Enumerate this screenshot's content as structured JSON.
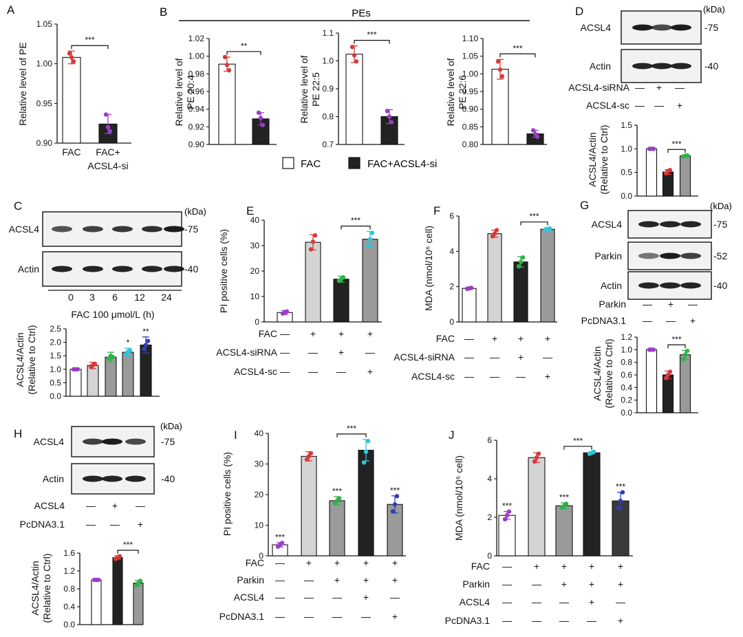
{
  "figure": {
    "legend": {
      "fac": "FAC",
      "fac_si": "FAC+ACSL4-si"
    },
    "pes_title": "PEs",
    "kda": "(kDa)",
    "colors": {
      "white": "#ffffff",
      "black": "#222222",
      "dark": "#3a3a3a",
      "light": "#d4d4d4",
      "mid": "#9a9a9a",
      "red": "#d93a3a",
      "purple": "#9a3dc8",
      "green": "#2eb34a",
      "cyan": "#2fc6dc",
      "blue": "#2f3fb0"
    }
  },
  "chart_data": [
    {
      "id": "A",
      "type": "bar",
      "panel_label": "A",
      "ylabel": "Relative level of PE",
      "ylim": [
        0.9,
        1.05
      ],
      "yticks": [
        "0.90",
        "0.95",
        "1.00",
        "1.05"
      ],
      "categories": [
        "FAC",
        "FAC+ ACSL4-si"
      ],
      "values": [
        1.008,
        0.924
      ],
      "errors": [
        0.008,
        0.012
      ],
      "fills": [
        "white",
        "black"
      ],
      "dots": [
        "red",
        "purple"
      ],
      "dot_values": [
        [
          1.013,
          1.008,
          1.003
        ],
        [
          0.936,
          0.92,
          0.915
        ]
      ],
      "sig": [
        {
          "from": 0,
          "to": 1,
          "label": "***"
        }
      ],
      "cat_lines": [
        [
          "FAC"
        ],
        [
          "FAC+",
          "ACSL4-si"
        ]
      ]
    },
    {
      "id": "B1",
      "type": "bar",
      "panel_label": "B",
      "ylabel": "Relative level of PE 20:4",
      "ylim": [
        0.9,
        1.02
      ],
      "yticks": [
        "0.90",
        "0.92",
        "0.94",
        "0.96",
        "0.98",
        "1.00",
        "1.02"
      ],
      "categories": [
        "FAC",
        "FAC+ACSL4-si"
      ],
      "values": [
        0.991,
        0.929
      ],
      "errors": [
        0.008,
        0.007
      ],
      "fills": [
        "white",
        "black"
      ],
      "dots": [
        "red",
        "purple"
      ],
      "dot_values": [
        [
          0.999,
          0.99,
          0.984
        ],
        [
          0.936,
          0.93,
          0.922
        ]
      ],
      "sig": [
        {
          "from": 0,
          "to": 1,
          "label": "**"
        }
      ]
    },
    {
      "id": "B2",
      "type": "bar",
      "ylabel": "Relative level of PE 22:5",
      "ylim": [
        0.7,
        1.1
      ],
      "yticks": [
        "0.7",
        "0.8",
        "0.9",
        "1.0",
        "1.1"
      ],
      "categories": [
        "FAC",
        "FAC+ACSL4-si"
      ],
      "values": [
        1.024,
        0.8
      ],
      "errors": [
        0.03,
        0.025
      ],
      "fills": [
        "white",
        "black"
      ],
      "dots": [
        "red",
        "purple"
      ],
      "dot_values": [
        [
          1.05,
          1.02,
          0.998
        ],
        [
          0.82,
          0.8,
          0.78
        ]
      ],
      "sig": [
        {
          "from": 0,
          "to": 1,
          "label": "***"
        }
      ]
    },
    {
      "id": "B3",
      "type": "bar",
      "ylabel": "Relative level of PE 22:6",
      "ylim": [
        0.8,
        1.1
      ],
      "yticks": [
        "0.80",
        "0.85",
        "0.90",
        "0.95",
        "1.00",
        "1.05",
        "1.10"
      ],
      "categories": [
        "FAC",
        "FAC+ACSL4-si"
      ],
      "values": [
        1.013,
        0.83
      ],
      "errors": [
        0.028,
        0.01
      ],
      "fills": [
        "white",
        "black"
      ],
      "dots": [
        "red",
        "purple"
      ],
      "dot_values": [
        [
          1.035,
          1.012,
          0.993
        ],
        [
          0.84,
          0.83,
          0.822
        ]
      ],
      "sig": [
        {
          "from": 0,
          "to": 1,
          "label": "***"
        }
      ]
    },
    {
      "id": "C",
      "type": "bar",
      "ylabel": "ACSL4/Actin (Relative to Ctrl)",
      "ylim": [
        0,
        2.5
      ],
      "yticks": [
        "0.0",
        "0.5",
        "1.0",
        "1.5",
        "2.0",
        "2.5"
      ],
      "categories": [
        "0",
        "3",
        "6",
        "12",
        "24"
      ],
      "values": [
        1.0,
        1.14,
        1.45,
        1.63,
        1.9
      ],
      "errors": [
        0.02,
        0.12,
        0.18,
        0.15,
        0.3
      ],
      "fills": [
        "white",
        "light",
        "mid",
        "mid",
        "black"
      ],
      "dots": [
        "purple",
        "red",
        "green",
        "cyan",
        "blue"
      ],
      "dot_values": [
        [
          1.0,
          1.0,
          1.0
        ],
        [
          1.1,
          1.15,
          1.2
        ],
        [
          1.4,
          1.5,
          1.45
        ],
        [
          1.55,
          1.65,
          1.7
        ],
        [
          1.75,
          1.9,
          2.05
        ]
      ],
      "stars": [
        "",
        "",
        "",
        "*",
        "**"
      ]
    },
    {
      "id": "D",
      "type": "bar",
      "ylabel": "ACSL4/Actin (Relative to Ctrl)",
      "ylim": [
        0,
        1.5
      ],
      "yticks": [
        "0.0",
        "0.5",
        "1.0",
        "1.5"
      ],
      "categories": [
        "",
        "",
        ""
      ],
      "values": [
        1.0,
        0.51,
        0.85
      ],
      "errors": [
        0.02,
        0.05,
        0.02
      ],
      "fills": [
        "white",
        "black",
        "mid"
      ],
      "dots": [
        "purple",
        "red",
        "green"
      ],
      "dot_values": [
        [
          1.0,
          1.0,
          1.0
        ],
        [
          0.48,
          0.53,
          0.55
        ],
        [
          0.84,
          0.85,
          0.86
        ]
      ],
      "sig": [
        {
          "from": 1,
          "to": 2,
          "label": "***"
        }
      ]
    },
    {
      "id": "E",
      "type": "bar",
      "panel_label": "E",
      "ylabel": "PI positive cells (%)",
      "ylim": [
        0,
        40
      ],
      "yticks": [
        "0",
        "10",
        "20",
        "30",
        "40"
      ],
      "categories": [
        "",
        "",
        "",
        ""
      ],
      "values": [
        3.7,
        31.3,
        16.8,
        32.5
      ],
      "errors": [
        0.8,
        3.0,
        1.2,
        3.0
      ],
      "fills": [
        "white",
        "light",
        "black",
        "mid"
      ],
      "dots": [
        "purple",
        "red",
        "green",
        "cyan"
      ],
      "dot_values": [
        [
          3.3,
          3.7,
          4.1
        ],
        [
          28.5,
          31.5,
          34
        ],
        [
          16.2,
          16.8,
          17.5
        ],
        [
          30,
          32.5,
          35
        ]
      ],
      "sig": [
        {
          "from": 2,
          "to": 3,
          "label": "***"
        }
      ],
      "conditions": [
        {
          "label": "FAC",
          "signs": [
            "—",
            "+",
            "+",
            "+"
          ]
        },
        {
          "label": "ACSL4-siRNA",
          "signs": [
            "—",
            "—",
            "+",
            "—"
          ]
        },
        {
          "label": "ACSL4-sc",
          "signs": [
            "—",
            "—",
            "—",
            "+"
          ]
        }
      ]
    },
    {
      "id": "F",
      "type": "bar",
      "panel_label": "F",
      "ylabel": "MDA (nmol/10⁶ cell)",
      "ylim": [
        0,
        6
      ],
      "yticks": [
        "0",
        "2",
        "4",
        "6"
      ],
      "categories": [
        "",
        "",
        "",
        ""
      ],
      "values": [
        1.9,
        5.0,
        3.4,
        5.25
      ],
      "errors": [
        0.06,
        0.2,
        0.3,
        0.1
      ],
      "fills": [
        "white",
        "light",
        "black",
        "mid"
      ],
      "dots": [
        "purple",
        "red",
        "green",
        "cyan"
      ],
      "dot_values": [
        [
          1.88,
          1.9,
          1.93
        ],
        [
          4.85,
          5.0,
          5.2
        ],
        [
          3.15,
          3.4,
          3.65
        ],
        [
          5.2,
          5.25,
          5.3
        ]
      ],
      "sig": [
        {
          "from": 2,
          "to": 3,
          "label": "***"
        }
      ],
      "conditions": [
        {
          "label": "FAC",
          "signs": [
            "—",
            "+",
            "+",
            "+"
          ]
        },
        {
          "label": "ACSL4-siRNA",
          "signs": [
            "—",
            "—",
            "+",
            "—"
          ]
        },
        {
          "label": "ACSL4-sc",
          "signs": [
            "—",
            "—",
            "—",
            "+"
          ]
        }
      ]
    },
    {
      "id": "G",
      "type": "bar",
      "ylabel": "ACSL4/Actin (Relative to Ctrl)",
      "ylim": [
        0,
        1.2
      ],
      "yticks": [
        "0.0",
        "0.2",
        "0.4",
        "0.6",
        "0.8",
        "1.0",
        "1.2"
      ],
      "categories": [
        "",
        "",
        ""
      ],
      "values": [
        1.0,
        0.6,
        0.92
      ],
      "errors": [
        0.01,
        0.06,
        0.07
      ],
      "fills": [
        "white",
        "black",
        "mid"
      ],
      "dots": [
        "purple",
        "red",
        "green"
      ],
      "dot_values": [
        [
          1.0,
          1.0,
          1.0
        ],
        [
          0.55,
          0.6,
          0.65
        ],
        [
          0.85,
          0.92,
          0.98
        ]
      ],
      "sig": [
        {
          "from": 1,
          "to": 2,
          "label": "***"
        }
      ]
    },
    {
      "id": "H",
      "type": "bar",
      "ylabel": "ACSL4/Actin (Relative to Ctrl)",
      "ylim": [
        0,
        1.6
      ],
      "yticks": [
        "0.0",
        "0.4",
        "0.8",
        "1.2",
        "1.6"
      ],
      "categories": [
        "",
        "",
        ""
      ],
      "values": [
        1.0,
        1.5,
        0.93
      ],
      "errors": [
        0.01,
        0.04,
        0.06
      ],
      "fills": [
        "white",
        "black",
        "mid"
      ],
      "dots": [
        "purple",
        "red",
        "green"
      ],
      "dot_values": [
        [
          1.0,
          1.0,
          1.0
        ],
        [
          1.47,
          1.5,
          1.53
        ],
        [
          0.88,
          0.93,
          0.98
        ]
      ],
      "sig": [
        {
          "from": 1,
          "to": 2,
          "label": "***"
        }
      ]
    },
    {
      "id": "I",
      "type": "bar",
      "panel_label": "I",
      "ylabel": "PI positive cells (%)",
      "ylim": [
        0,
        40
      ],
      "yticks": [
        "0",
        "10",
        "20",
        "30",
        "40"
      ],
      "categories": [
        "",
        "",
        "",
        "",
        ""
      ],
      "values": [
        3.6,
        32.5,
        18.0,
        34.5,
        16.8
      ],
      "errors": [
        0.7,
        1.5,
        1.3,
        3.5,
        2.8
      ],
      "fills": [
        "white",
        "light",
        "mid",
        "black",
        "mid"
      ],
      "dots": [
        "purple",
        "red",
        "green",
        "cyan",
        "blue"
      ],
      "dot_values": [
        [
          3.0,
          3.6,
          4.2
        ],
        [
          31.5,
          32.5,
          33.5
        ],
        [
          17.2,
          18,
          18.8
        ],
        [
          30.5,
          34,
          37.5
        ],
        [
          14.5,
          16.8,
          19.5
        ]
      ],
      "stars": [
        "***",
        "",
        "***",
        "",
        "***"
      ],
      "sig": [
        {
          "from": 2,
          "to": 3,
          "label": "***"
        }
      ],
      "conditions": [
        {
          "label": "FAC",
          "signs": [
            "—",
            "+",
            "+",
            "+",
            "+"
          ]
        },
        {
          "label": "Parkin",
          "signs": [
            "—",
            "—",
            "+",
            "+",
            "+"
          ]
        },
        {
          "label": "ACSL4",
          "signs": [
            "—",
            "—",
            "—",
            "+",
            "—"
          ]
        },
        {
          "label": "PcDNA3.1",
          "signs": [
            "—",
            "—",
            "—",
            "—",
            "+"
          ]
        }
      ]
    },
    {
      "id": "J",
      "type": "bar",
      "panel_label": "J",
      "ylabel": "MDA (nmol/10⁶ cell)",
      "ylim": [
        0,
        6
      ],
      "yticks": [
        "0",
        "2",
        "4",
        "6"
      ],
      "categories": [
        "",
        "",
        "",
        "",
        ""
      ],
      "values": [
        2.1,
        5.1,
        2.6,
        5.35,
        2.85
      ],
      "errors": [
        0.2,
        0.25,
        0.15,
        0.05,
        0.45
      ],
      "fills": [
        "white",
        "light",
        "mid",
        "black",
        "dark"
      ],
      "dots": [
        "purple",
        "red",
        "green",
        "cyan",
        "blue"
      ],
      "dot_values": [
        [
          1.9,
          2.1,
          2.3
        ],
        [
          4.9,
          5.1,
          5.3
        ],
        [
          2.5,
          2.6,
          2.7
        ],
        [
          5.3,
          5.35,
          5.4
        ],
        [
          2.5,
          2.85,
          3.3
        ]
      ],
      "stars": [
        "***",
        "",
        "***",
        "",
        "***"
      ],
      "sig": [
        {
          "from": 2,
          "to": 3,
          "label": "***"
        }
      ],
      "conditions": [
        {
          "label": "FAC",
          "signs": [
            "—",
            "+",
            "+",
            "+",
            "+"
          ]
        },
        {
          "label": "Parkin",
          "signs": [
            "—",
            "—",
            "+",
            "+",
            "+"
          ]
        },
        {
          "label": "ACSL4",
          "signs": [
            "—",
            "—",
            "—",
            "+",
            "—"
          ]
        },
        {
          "label": "PcDNA3.1",
          "signs": [
            "—",
            "—",
            "—",
            "—",
            "+"
          ]
        }
      ]
    }
  ],
  "blots": [
    {
      "id": "D",
      "panel_label": "D",
      "rows": [
        {
          "name": "ACSL4",
          "kda": "-75",
          "bands": [
            0.95,
            0.7,
            0.95
          ]
        },
        {
          "name": "Actin",
          "kda": "-40",
          "bands": [
            0.9,
            0.9,
            0.9
          ]
        }
      ],
      "conditions": [
        {
          "label": "ACSL4-siRNA",
          "signs": [
            "—",
            "+",
            "—"
          ]
        },
        {
          "label": "ACSL4-sc",
          "signs": [
            "—",
            "—",
            "+"
          ]
        }
      ]
    },
    {
      "id": "C",
      "panel_label": "C",
      "rows": [
        {
          "name": "ACSL4",
          "kda": "-75",
          "bands": [
            0.65,
            0.75,
            0.8,
            0.85,
            0.95
          ]
        },
        {
          "name": "Actin",
          "kda": "-40",
          "bands": [
            0.9,
            0.9,
            0.9,
            0.9,
            0.9
          ]
        }
      ],
      "time_labels": [
        "0",
        "3",
        "6",
        "12",
        "24"
      ],
      "caption": "FAC 100 μmol/L (h)"
    },
    {
      "id": "G",
      "panel_label": "G",
      "rows": [
        {
          "name": "ACSL4",
          "kda": "-75",
          "bands": [
            0.9,
            0.9,
            0.9
          ]
        },
        {
          "name": "Parkin",
          "kda": "-52",
          "bands": [
            0.45,
            0.95,
            0.75
          ]
        },
        {
          "name": "Actin",
          "kda": "-40",
          "bands": [
            0.9,
            0.9,
            0.9
          ]
        }
      ],
      "conditions": [
        {
          "label": "Parkin",
          "signs": [
            "—",
            "+",
            "—"
          ]
        },
        {
          "label": "PcDNA3.1",
          "signs": [
            "—",
            "—",
            "+"
          ]
        }
      ]
    },
    {
      "id": "H",
      "panel_label": "H",
      "rows": [
        {
          "name": "ACSL4",
          "kda": "-75",
          "bands": [
            0.75,
            0.95,
            0.7
          ]
        },
        {
          "name": "Actin",
          "kda": "-40",
          "bands": [
            0.9,
            0.9,
            0.9
          ]
        }
      ],
      "conditions": [
        {
          "label": "ACSL4",
          "signs": [
            "—",
            "+",
            "—"
          ]
        },
        {
          "label": "PcDNA3.1",
          "signs": [
            "—",
            "—",
            "+"
          ]
        }
      ]
    }
  ]
}
